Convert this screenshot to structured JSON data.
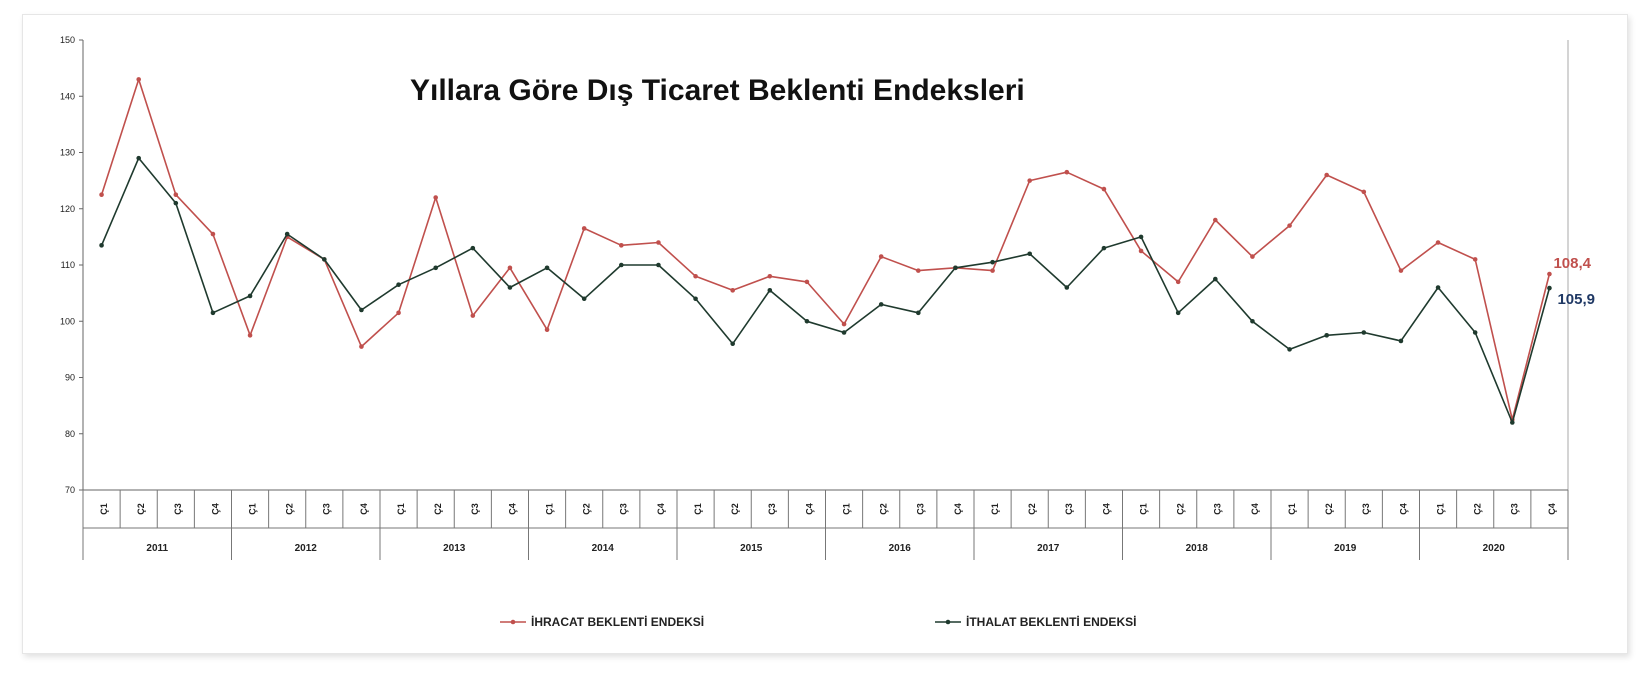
{
  "chart_data": {
    "type": "line",
    "title": "Yıllara Göre Dış Ticaret Beklenti Endeksleri",
    "yticks": [
      70,
      80,
      90,
      100,
      110,
      120,
      130,
      140,
      150
    ],
    "quarter_labels": [
      "Ç1",
      "Ç2",
      "Ç3",
      "Ç4",
      "Ç1",
      "Ç2",
      "Ç3",
      "Ç4",
      "Ç1",
      "Ç2",
      "Ç3",
      "Ç4",
      "Ç1",
      "Ç2",
      "Ç3",
      "Ç4",
      "Ç1",
      "Ç2",
      "Ç3",
      "Ç4",
      "Ç1",
      "Ç2",
      "Ç3",
      "Ç4",
      "Ç1",
      "Ç2",
      "Ç3",
      "Ç4",
      "Ç1",
      "Ç2",
      "Ç3",
      "Ç4",
      "Ç1",
      "Ç2",
      "Ç3",
      "Ç4",
      "Ç1",
      "Ç2",
      "Ç3",
      "Ç4"
    ],
    "years": [
      "2011",
      "2012",
      "2013",
      "2014",
      "2015",
      "2016",
      "2017",
      "2018",
      "2019",
      "2020"
    ],
    "ylim": [
      70,
      150
    ],
    "series": [
      {
        "name": "İHRACAT BEKLENTİ ENDEKSİ",
        "color": "#c0504d",
        "values": [
          122.5,
          143,
          122.5,
          115.5,
          97.5,
          115,
          111,
          95.5,
          101.5,
          122,
          101,
          109.5,
          98.5,
          116.5,
          113.5,
          114,
          108,
          105.5,
          108,
          107,
          99.5,
          111.5,
          109,
          109.5,
          109,
          125,
          126.5,
          123.5,
          112.5,
          107,
          118,
          111.5,
          117,
          126,
          123,
          109,
          114,
          111,
          82.5,
          108.4
        ]
      },
      {
        "name": "İTHALAT BEKLENTİ ENDEKSİ",
        "color": "#1f3a2e",
        "values": [
          113.5,
          129,
          121,
          101.5,
          104.5,
          115.5,
          111,
          102,
          106.5,
          109.5,
          113,
          106,
          109.5,
          104,
          110,
          110,
          104,
          96,
          105.5,
          100,
          98,
          103,
          101.5,
          109.5,
          110.5,
          112,
          106,
          113,
          115,
          101.5,
          107.5,
          100,
          95,
          97.5,
          98,
          96.5,
          106,
          98,
          82,
          105.9
        ]
      }
    ],
    "end_labels": [
      "108,4",
      "105,9"
    ],
    "legend": "bottom"
  }
}
